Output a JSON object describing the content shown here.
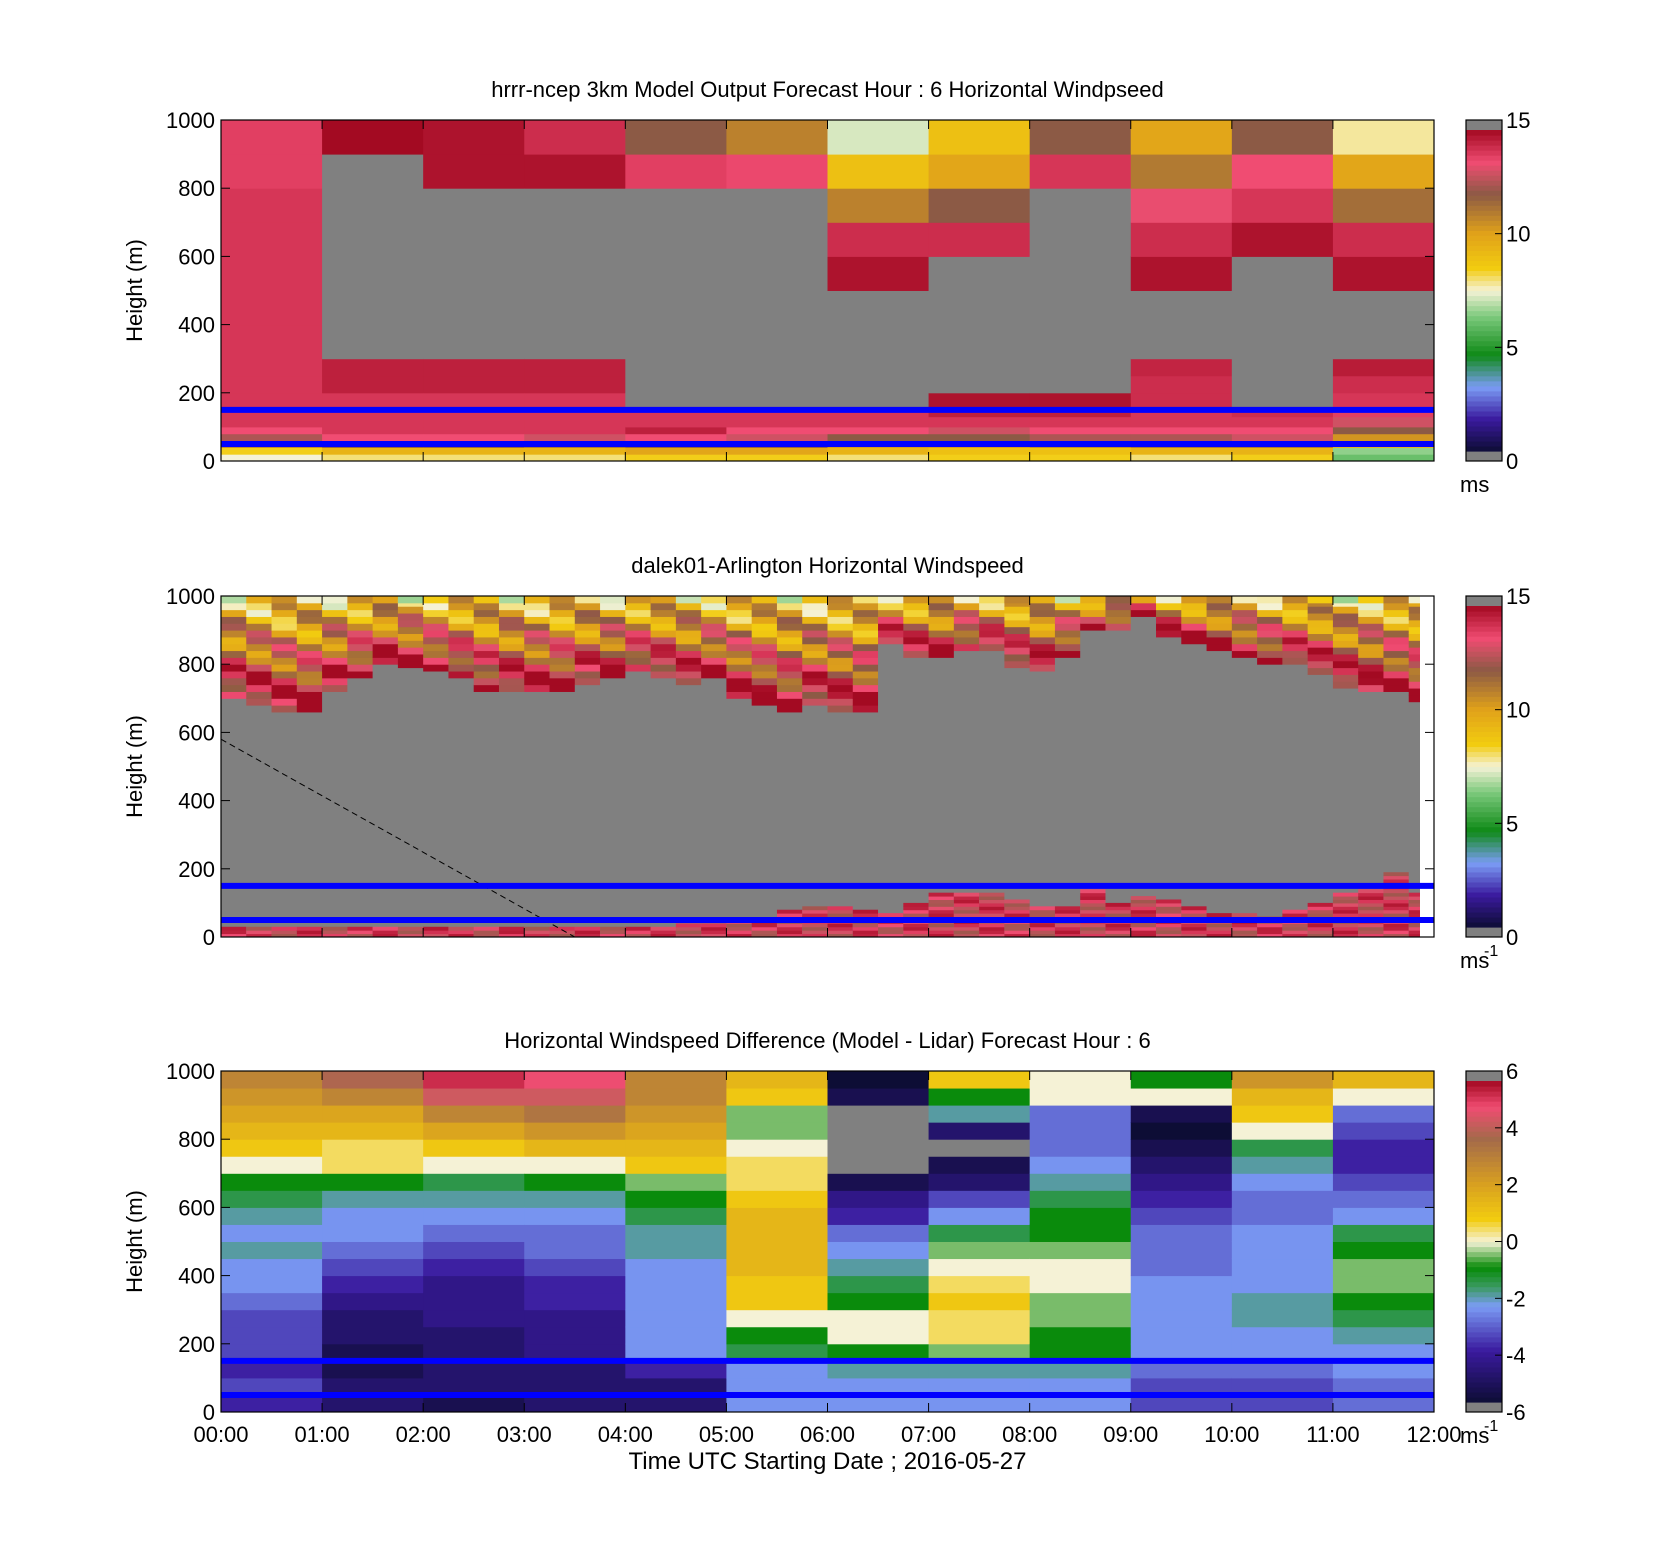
{
  "figure": {
    "xlabel": "Time UTC  Starting Date ; 2016-05-27",
    "time_ticks": [
      "00:00",
      "01:00",
      "02:00",
      "03:00",
      "04:00",
      "05:00",
      "06:00",
      "07:00",
      "08:00",
      "09:00",
      "10:00",
      "11:00",
      "12:00"
    ],
    "height_ticks": [
      "0",
      "200",
      "400",
      "600",
      "800",
      "1000"
    ],
    "reference_lines_m": [
      50,
      150
    ],
    "reference_line_color": "#0000ff",
    "missing_color": "#808080"
  },
  "chart_data": [
    {
      "type": "heatmap",
      "id": "model",
      "title": "hrrr-ncep 3km Model Output   Forecast Hour : 6 Horizontal Windpseed",
      "ylabel": "Height (m)",
      "xlim": [
        "00:00",
        "12:00"
      ],
      "ylim": [
        0,
        1000
      ],
      "colorbar": {
        "range": [
          0,
          15
        ],
        "ticks": [
          "0",
          "5",
          "10",
          "15"
        ],
        "unit_label": "ms",
        "unit_sup": "",
        "colormap": "speed"
      },
      "grid": false,
      "levels_m": [
        0,
        20,
        40,
        60,
        80,
        100,
        130,
        160,
        200,
        250,
        300,
        400,
        500,
        600,
        700,
        800,
        900,
        1000
      ],
      "hour_values_ms": [
        [
          7.5,
          8.5,
          11,
          12.5,
          13.5,
          14,
          14,
          14,
          14,
          14,
          14,
          14,
          14,
          14,
          14,
          13.8,
          13.8
        ],
        [
          8,
          9.5,
          12,
          13.5,
          14,
          14,
          14,
          14,
          14.5,
          14.5,
          null,
          null,
          null,
          null,
          null,
          null,
          15
        ],
        [
          8,
          9.5,
          12,
          13.5,
          14,
          14,
          14,
          14,
          14.5,
          14.5,
          null,
          null,
          null,
          null,
          null,
          14.8,
          14.8
        ],
        [
          8,
          9.5,
          11.5,
          13,
          14,
          14,
          14,
          14,
          14.5,
          14.5,
          null,
          null,
          null,
          null,
          null,
          14.8,
          14.2
        ],
        [
          8.5,
          10,
          12,
          13.5,
          14.5,
          14,
          14,
          null,
          null,
          null,
          null,
          null,
          null,
          null,
          null,
          13.8,
          12
        ],
        [
          8.5,
          10,
          12,
          13,
          13.5,
          14,
          14,
          null,
          null,
          null,
          null,
          null,
          null,
          null,
          null,
          13.6,
          11
        ],
        [
          8,
          9.5,
          10.5,
          12,
          13.5,
          14,
          14,
          null,
          null,
          null,
          null,
          null,
          14.8,
          14.2,
          11,
          9,
          7.2
        ],
        [
          8.5,
          9,
          10.5,
          12,
          13,
          14,
          14.5,
          14.8,
          null,
          null,
          null,
          null,
          null,
          14.2,
          12,
          10,
          9
        ],
        [
          8.5,
          9,
          11,
          12.5,
          13.5,
          14,
          14.5,
          14.8,
          null,
          null,
          null,
          null,
          null,
          null,
          null,
          14,
          12
        ],
        [
          8,
          9.5,
          11.5,
          12.5,
          13.5,
          14,
          14,
          14.2,
          14.2,
          14.4,
          null,
          null,
          14.8,
          14.2,
          13.4,
          11.2,
          10
        ],
        [
          8.5,
          9.5,
          11.5,
          13,
          13.5,
          14,
          14.2,
          null,
          null,
          null,
          null,
          null,
          null,
          14.8,
          14,
          13.5,
          12
        ],
        [
          6,
          6.5,
          9.5,
          10.5,
          12,
          13,
          13.8,
          14,
          14.2,
          14.6,
          null,
          null,
          14.8,
          14.2,
          11.5,
          10,
          7.8
        ]
      ]
    },
    {
      "type": "heatmap",
      "id": "lidar",
      "title": "dalek01-Arlington  Horizontal Windspeed",
      "ylabel": "Height (m)",
      "xlim": [
        "00:00",
        "12:00"
      ],
      "ylim": [
        0,
        1000
      ],
      "colorbar": {
        "range": [
          0,
          15
        ],
        "ticks": [
          "0",
          "5",
          "10",
          "15"
        ],
        "unit_label": "ms",
        "unit_sup": "-1",
        "colormap": "speed"
      },
      "grid": false,
      "columns": 48,
      "valid_top_m": [
        700,
        680,
        660,
        660,
        720,
        760,
        800,
        790,
        780,
        760,
        720,
        720,
        720,
        720,
        740,
        760,
        780,
        760,
        740,
        760,
        700,
        680,
        660,
        680,
        660,
        660,
        860,
        820,
        820,
        840,
        840,
        790,
        780,
        820,
        900,
        900,
        940,
        880,
        860,
        840,
        820,
        800,
        800,
        770,
        730,
        720,
        720,
        690
      ],
      "low_echo_top_m": [
        30,
        30,
        30,
        30,
        30,
        30,
        30,
        30,
        30,
        30,
        30,
        30,
        30,
        30,
        30,
        30,
        30,
        30,
        40,
        40,
        50,
        50,
        80,
        90,
        90,
        80,
        70,
        100,
        130,
        130,
        130,
        110,
        90,
        90,
        140,
        100,
        120,
        110,
        90,
        70,
        70,
        60,
        80,
        100,
        130,
        140,
        190,
        130
      ],
      "dashed_line": {
        "start": [
          "00:00",
          580
        ],
        "end": [
          "03:30",
          0
        ],
        "color": "#000000"
      }
    },
    {
      "type": "heatmap",
      "id": "difference",
      "title": "Horizontal Windspeed Difference (Model - Lidar) Forecast Hour : 6",
      "ylabel": "Height (m)",
      "xlim": [
        "00:00",
        "12:00"
      ],
      "ylim": [
        0,
        1000
      ],
      "colorbar": {
        "range": [
          -6,
          6
        ],
        "ticks": [
          "-6",
          "-4",
          "-2",
          "0",
          "2",
          "4",
          "6"
        ],
        "unit_label": "ms",
        "unit_sup": "-1",
        "colormap": "difference"
      },
      "grid": false,
      "levels_m": [
        0,
        50,
        100,
        150,
        200,
        250,
        300,
        350,
        400,
        450,
        500,
        550,
        600,
        650,
        700,
        750,
        800,
        850,
        900,
        950,
        1000
      ],
      "hour_values_ms": [
        [
          -4,
          -3.5,
          -4,
          -3.5,
          -3.5,
          -3.5,
          -3,
          -2.5,
          -2.5,
          -2,
          -2.5,
          -2,
          -1.5,
          -1,
          0,
          1,
          1.5,
          2,
          2.5,
          3
        ],
        [
          -5,
          -5,
          -5.5,
          -5.5,
          -5,
          -5,
          -4.5,
          -4,
          -3.5,
          -3,
          -2.5,
          -2.5,
          -2,
          -1,
          0.5,
          0.5,
          1.5,
          2,
          3,
          4
        ],
        [
          -5.5,
          -5,
          -5,
          -5,
          -5,
          -4.5,
          -4.5,
          -4.5,
          -4,
          -3.5,
          -3,
          -2.5,
          -2,
          -1.5,
          0,
          1,
          2,
          3,
          4.5,
          5.5
        ],
        [
          -5,
          -5,
          -5,
          -4.5,
          -4.5,
          -4.5,
          -4,
          -4,
          -3.5,
          -3,
          -3,
          -2.5,
          -2,
          -1,
          0,
          1.5,
          2.5,
          3.5,
          4.5,
          5
        ],
        [
          -5,
          -5,
          -4,
          -2.5,
          -2.5,
          -2.5,
          -2.5,
          -2.5,
          -2.5,
          -2,
          -2,
          -1.5,
          -1,
          -0.5,
          1,
          1.5,
          2,
          2.5,
          3,
          3
        ],
        [
          -2.5,
          -2.5,
          -2.5,
          -1.5,
          -1,
          0,
          1,
          1,
          1.5,
          1.5,
          1.5,
          1.5,
          1,
          0.5,
          0.5,
          0,
          -0.5,
          -0.5,
          1,
          1.5
        ],
        [
          -2.5,
          -2.5,
          -2,
          -1,
          0,
          0,
          -1,
          -1.5,
          -2,
          -2.5,
          -3,
          -4,
          -4.5,
          -5.5,
          null,
          null,
          null,
          null,
          -5.5,
          -6
        ],
        [
          -2.5,
          -2.5,
          -2,
          -0.5,
          0.5,
          0.5,
          1,
          0.5,
          0,
          -0.5,
          -1.5,
          -2.5,
          -3.5,
          -5,
          -5.5,
          null,
          -5,
          -2,
          -1,
          1
        ],
        [
          -2.5,
          -2.5,
          -2,
          -1,
          -1,
          -0.5,
          -0.5,
          0,
          0,
          -0.5,
          -1,
          -1,
          -1.5,
          -2,
          -2.5,
          -3,
          -3,
          -3,
          0,
          0
        ],
        [
          -3.5,
          -3.5,
          -3,
          -2.5,
          -2.5,
          -2.5,
          -2.5,
          -2.5,
          -3,
          -3,
          -3,
          -3.5,
          -4,
          -4.5,
          -5,
          -5.5,
          -6,
          -5.5,
          0,
          -1
        ],
        [
          -3.5,
          -3.5,
          -3,
          -2.5,
          -2.5,
          -2,
          -2,
          -2.5,
          -2.5,
          -2.5,
          -2.5,
          -3,
          -3,
          -2.5,
          -2,
          -1.5,
          0,
          1,
          1.5,
          2.5
        ],
        [
          -3,
          -3,
          -2.5,
          -2.5,
          -2,
          -1.5,
          -1,
          -0.5,
          -0.5,
          -1,
          -1.5,
          -2.5,
          -3,
          -3.5,
          -4,
          -4,
          -3.5,
          -3,
          0,
          1.5
        ]
      ]
    }
  ]
}
